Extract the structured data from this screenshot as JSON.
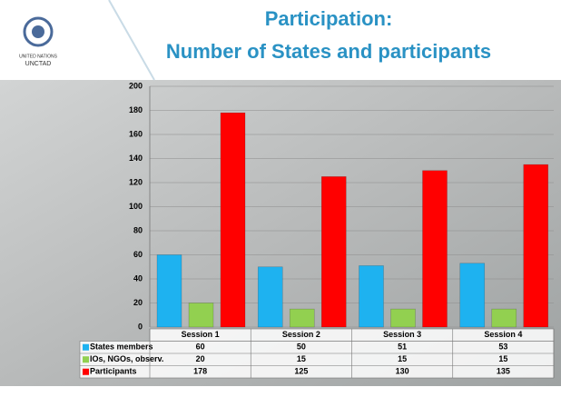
{
  "logo": {
    "line1": "UNITED NATIONS",
    "line2": "UNCTAD"
  },
  "chart_data": {
    "type": "bar",
    "title": [
      "Participation:",
      "Number of States and participants"
    ],
    "categories": [
      "Session 1",
      "Session 2",
      "Session 3",
      "Session 4"
    ],
    "series": [
      {
        "name": "States members",
        "color": "#1eb2f0",
        "values": [
          60,
          50,
          51,
          53
        ]
      },
      {
        "name": "IOs, NGOs, observ.",
        "color": "#92d050",
        "values": [
          20,
          15,
          15,
          15
        ]
      },
      {
        "name": "Participants",
        "color": "#ff0000",
        "values": [
          178,
          125,
          130,
          135
        ]
      }
    ],
    "ylim": [
      0,
      200
    ],
    "yticks": [
      0,
      20,
      40,
      60,
      80,
      100,
      120,
      140,
      160,
      180,
      200
    ],
    "grid": true
  }
}
